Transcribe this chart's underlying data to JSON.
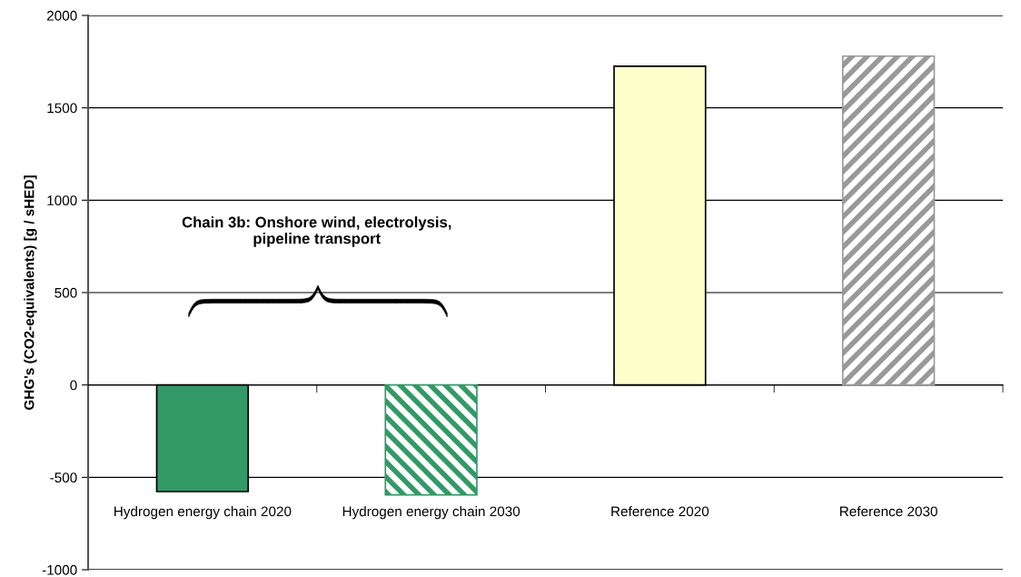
{
  "chart_data": {
    "type": "bar",
    "ylabel": "GHG's (CO2-equivalents) [g / sHED]",
    "categories": [
      "Hydrogen energy chain 2020",
      "Hydrogen energy chain 2030",
      "Reference 2020",
      "Reference 2030"
    ],
    "values": [
      -577,
      -595,
      1725,
      1780
    ],
    "colors": [
      "#339966",
      "#339966",
      "#ffffcc",
      "#999999"
    ],
    "ylim": [
      -1000,
      2000
    ],
    "yticks": [
      -1000,
      -500,
      0,
      500,
      1000,
      1500,
      2000
    ],
    "grid": "y",
    "annotations": [
      "Chain 3b: Onshore wind, electrolysis,\npipeline transport"
    ]
  }
}
